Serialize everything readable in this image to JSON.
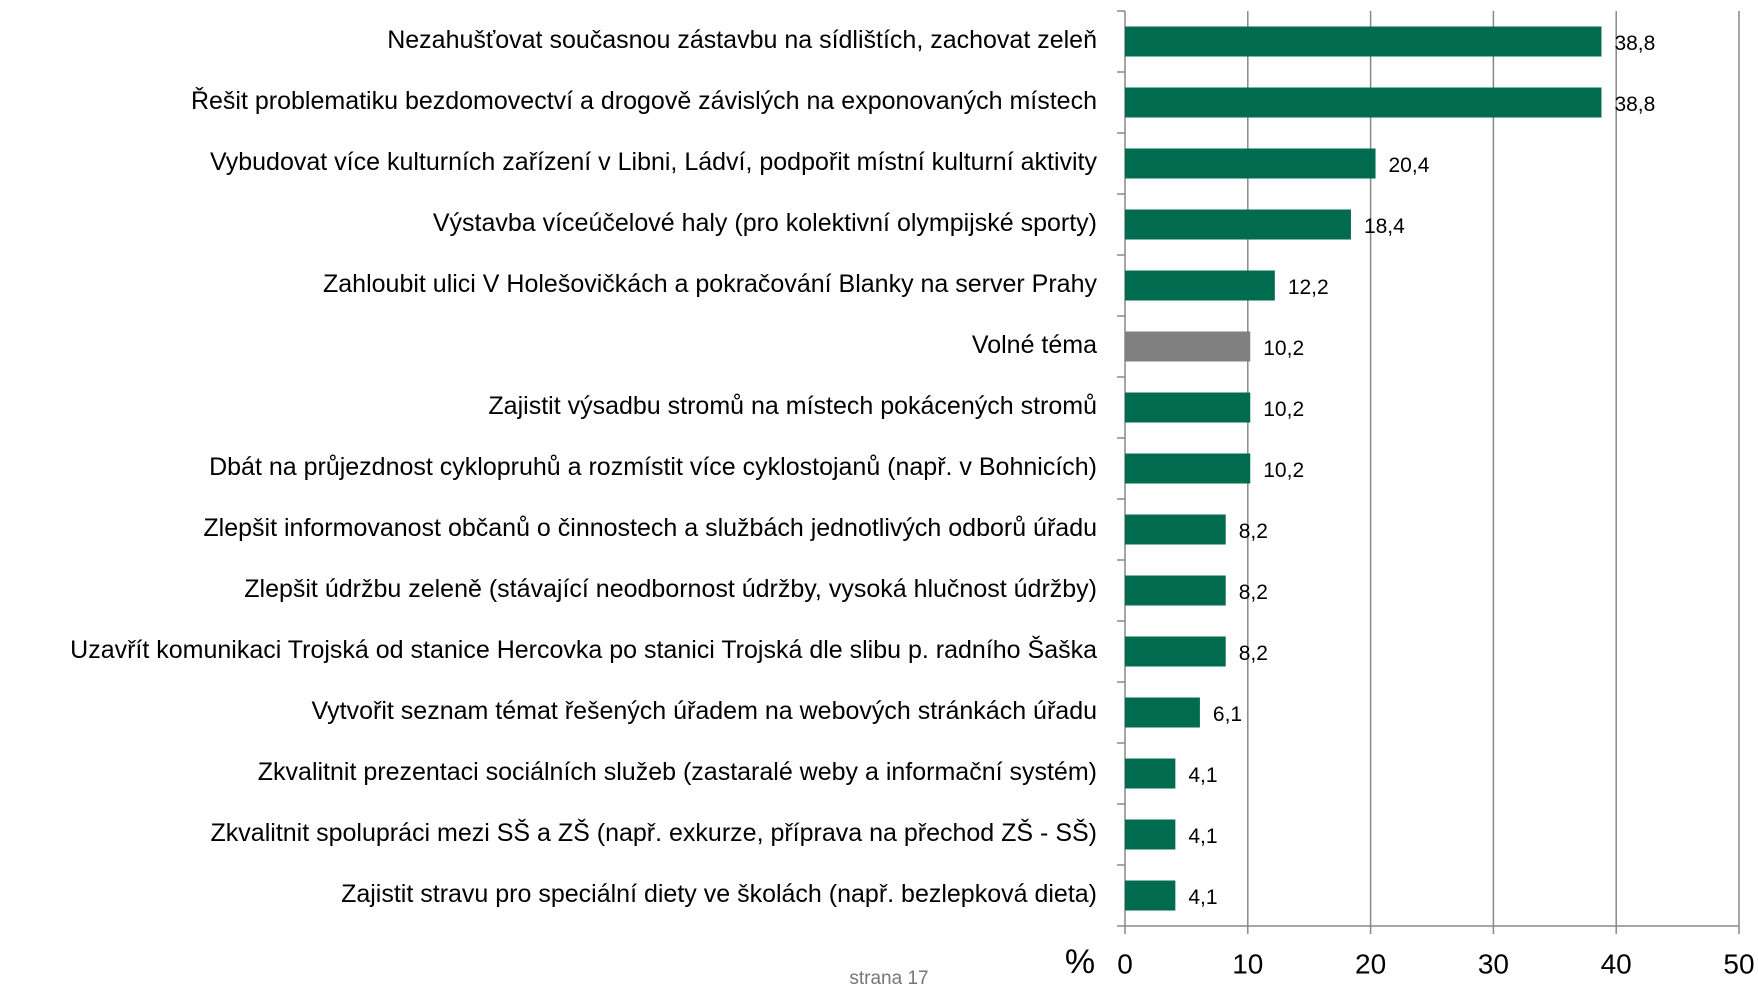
{
  "chart_data": {
    "type": "bar",
    "orientation": "horizontal",
    "categories": [
      "Nezahušťovat současnou zástavbu na sídlištích, zachovat zeleň",
      "Řešit problematiku bezdomovectví a drogově závislých na exponovaných místech",
      "Vybudovat více kulturních zařízení v Libni, Ládví, podpořit místní kulturní aktivity",
      "Výstavba víceúčelové haly (pro kolektivní olympijské sporty)",
      "Zahloubit ulici V Holešovičkách a pokračování Blanky na server Prahy",
      "Volné téma",
      "Zajistit výsadbu stromů na místech pokácených stromů",
      "Dbát na průjezdnost cyklopruhů a rozmístit více cyklostojanů (např. v Bohnicích)",
      "Zlepšit informovanost občanů o činnostech a službách jednotlivých odborů úřadu",
      "Zlepšit údržbu zeleně (stávající neodbornost údržby,  vysoká hlučnost údržby)",
      "Uzavřít komunikaci Trojská od stanice Hercovka po stanici Trojská dle slibu p. radního Šaška",
      "Vytvořit seznam témat řešených úřadem na webových stránkách úřadu",
      "Zkvalitnit prezentaci sociálních služeb (zastaralé weby a informační systém)",
      "Zkvalitnit spolupráci mezi SŠ a ZŠ (např. exkurze, příprava na přechod ZŠ - SŠ)",
      "Zajistit stravu pro speciální diety ve školách (např. bezlepková dieta)"
    ],
    "values": [
      38.8,
      38.8,
      20.4,
      18.4,
      12.2,
      10.2,
      10.2,
      10.2,
      8.2,
      8.2,
      8.2,
      6.1,
      4.1,
      4.1,
      4.1
    ],
    "value_labels": [
      "38,8",
      "38,8",
      "20,4",
      "18,4",
      "12,2",
      "10,2",
      "10,2",
      "10,2",
      "8,2",
      "8,2",
      "8,2",
      "6,1",
      "4,1",
      "4,1",
      "4,1"
    ],
    "colors": [
      "#006b4f",
      "#006b4f",
      "#006b4f",
      "#006b4f",
      "#006b4f",
      "#808080",
      "#006b4f",
      "#006b4f",
      "#006b4f",
      "#006b4f",
      "#006b4f",
      "#006b4f",
      "#006b4f",
      "#006b4f",
      "#006b4f"
    ],
    "xlim": [
      0,
      50
    ],
    "xticks": [
      0,
      10,
      20,
      30,
      40,
      50
    ],
    "xlabel": "%",
    "grid": true,
    "footer": "strana 17"
  }
}
